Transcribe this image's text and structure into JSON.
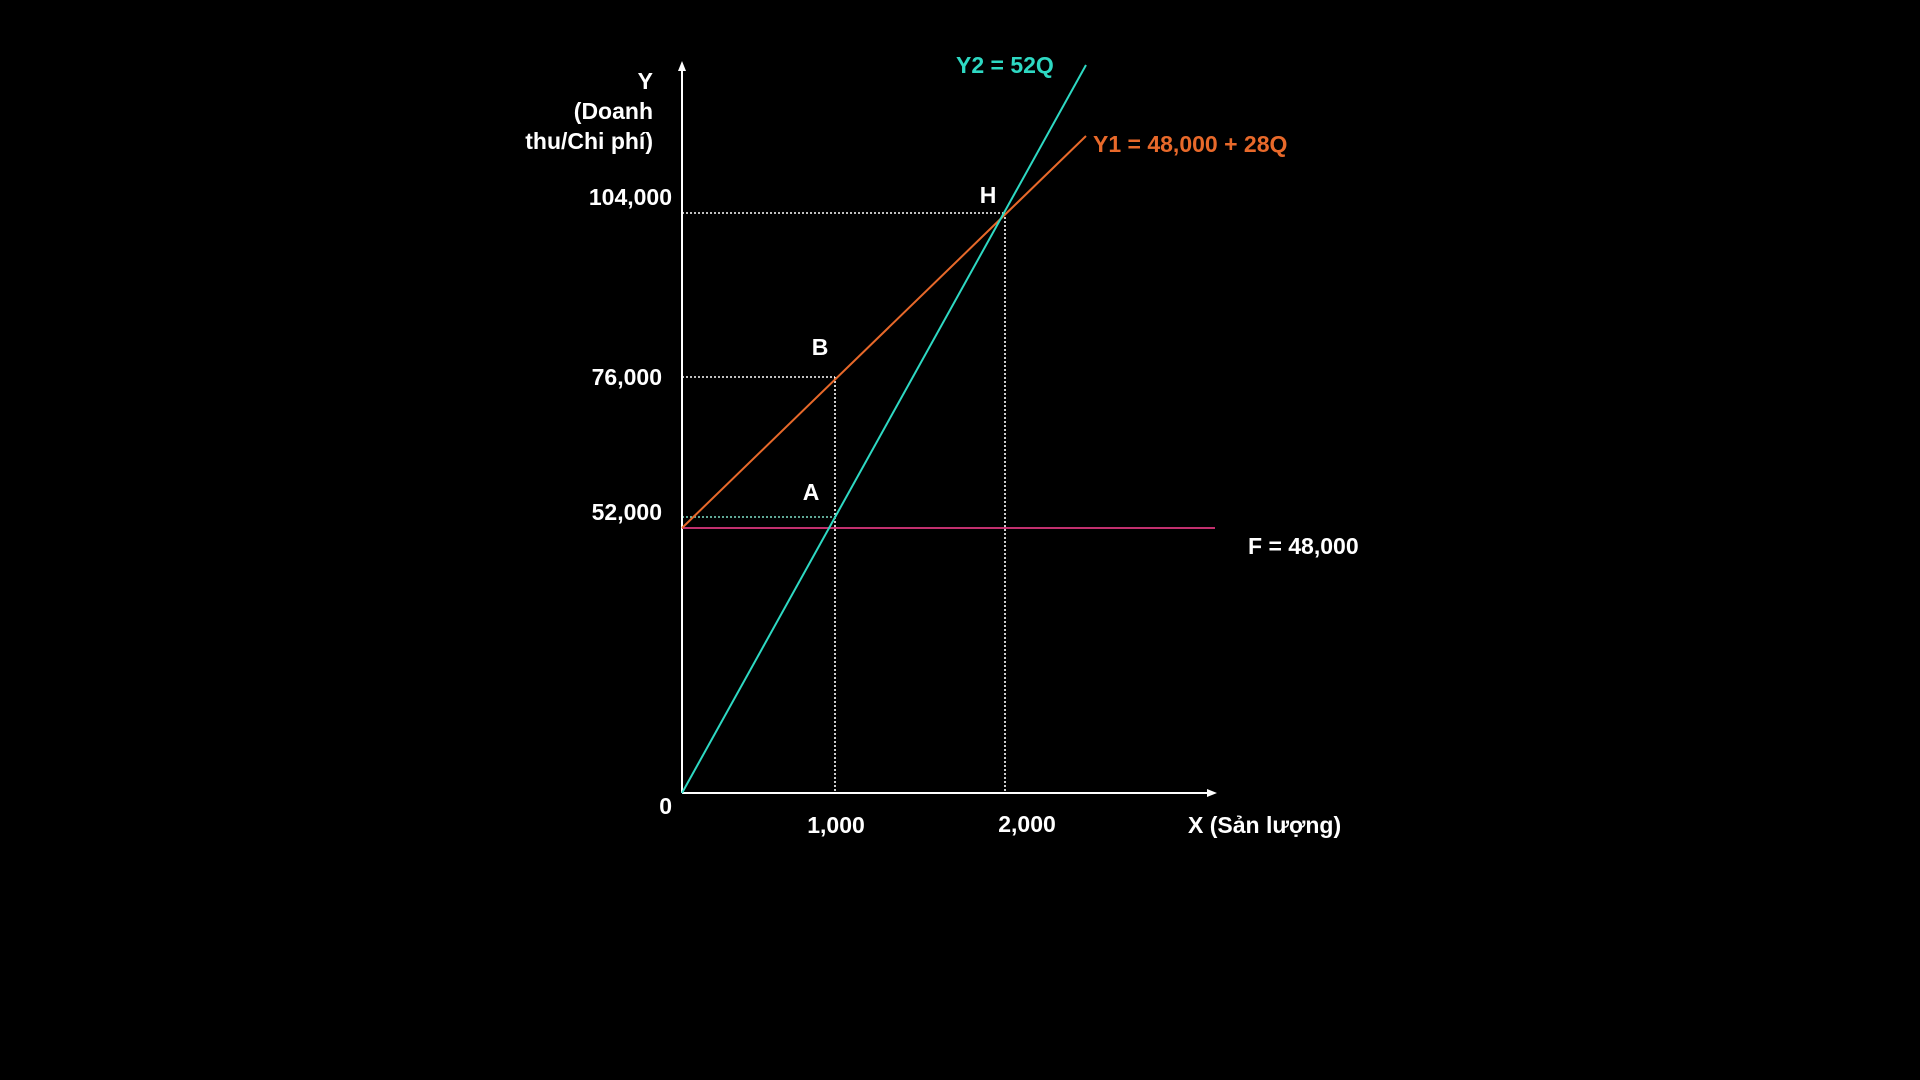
{
  "axes": {
    "y_label": [
      "Y",
      "(Doanh",
      "thu/Chi phí)"
    ],
    "x_label": "X (Sản lượng)",
    "origin": "0"
  },
  "y_ticks": [
    "104,000",
    "76,000",
    "52,000"
  ],
  "x_ticks": [
    "1,000",
    "2,000"
  ],
  "lines": [
    {
      "label": "Y2 = 52Q"
    },
    {
      "label": "Y1 = 48,000 + 28Q"
    },
    {
      "label": "F = 48,000"
    }
  ],
  "points": [
    "H",
    "B",
    "A"
  ]
}
